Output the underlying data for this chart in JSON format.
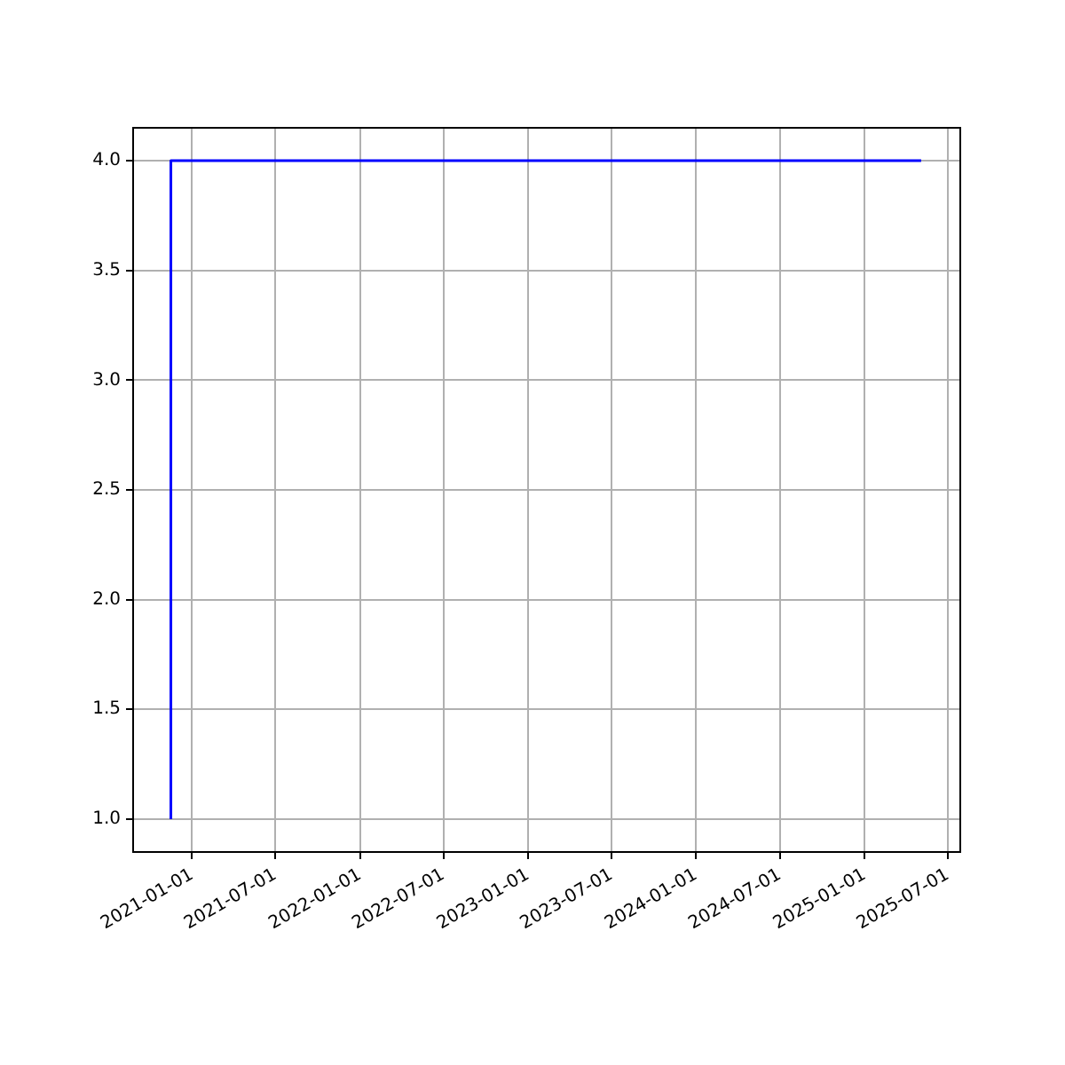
{
  "chart_data": {
    "type": "step",
    "x": [
      "2020-11-16",
      "2025-05-04"
    ],
    "series": [
      {
        "color": "#0000ff",
        "values": [
          1.0,
          4.0
        ]
      }
    ],
    "xlim": [
      "2020-08-26",
      "2025-07-28"
    ],
    "xticks": [
      "2021-01-01",
      "2021-07-01",
      "2022-01-01",
      "2022-07-01",
      "2023-01-01",
      "2023-07-01",
      "2024-01-01",
      "2024-07-01",
      "2025-01-01",
      "2025-07-01"
    ],
    "ylim": [
      0.85,
      4.15
    ],
    "yticks": [
      {
        "value": 1,
        "label": "1.0"
      },
      {
        "value": 1.5,
        "label": "1.5"
      },
      {
        "value": 2,
        "label": "2.0"
      },
      {
        "value": 2.5,
        "label": "2.5"
      },
      {
        "value": 3,
        "label": "3.0"
      },
      {
        "value": 3.5,
        "label": "3.5"
      },
      {
        "value": 4,
        "label": "4.0"
      }
    ],
    "grid": true,
    "marker": "none",
    "line_style": "solid"
  }
}
